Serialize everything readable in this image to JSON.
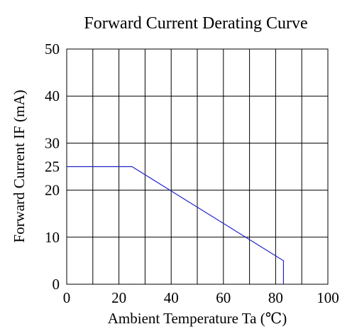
{
  "chart_data": {
    "type": "line",
    "title": "Forward Current Derating Curve",
    "xlabel": "Ambient Temperature Ta (℃)",
    "ylabel": "Forward Current IF (mA)",
    "xlim": [
      0,
      100
    ],
    "ylim": [
      0,
      50
    ],
    "x_ticks": [
      0,
      20,
      40,
      60,
      80,
      100
    ],
    "x_tick_labels": [
      "0",
      "20",
      "40",
      "60",
      "80",
      "100"
    ],
    "x_grid": [
      0,
      10,
      20,
      30,
      40,
      50,
      60,
      70,
      80,
      90,
      100
    ],
    "y_ticks": [
      0,
      10,
      20,
      25,
      30,
      40,
      50
    ],
    "y_tick_labels": [
      "0",
      "10",
      "20",
      "25",
      "30",
      "40",
      "50"
    ],
    "y_grid": [
      0,
      10,
      20,
      30,
      40,
      50
    ],
    "grid": true,
    "series": [
      {
        "x": [
          0,
          25,
          83,
          83
        ],
        "y": [
          25,
          25,
          5,
          0
        ],
        "color": "#2222cc"
      }
    ]
  }
}
